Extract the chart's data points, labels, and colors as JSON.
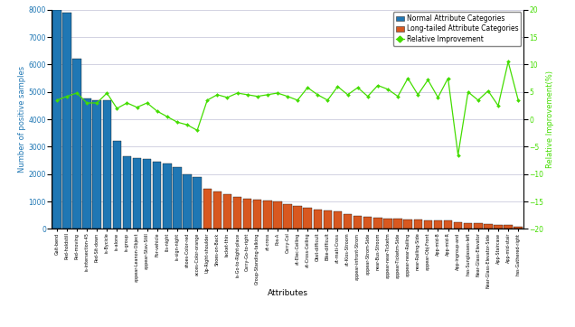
{
  "categories": [
    "Gait-bend",
    "Ped-holdstill",
    "Ped-moving",
    "is-intersection-45",
    "Ped-Sit-down",
    "is-Bycicle",
    "is-alone",
    "is-group",
    "appear-Leanon-Object",
    "appear-Stav-Still",
    "For-vehicle",
    "its-night",
    "is-sign-night",
    "shoes-Color-red",
    "acces-Color-orange",
    "Up-Right-shoulder",
    "Shoes-on-Back",
    "lacket-thin",
    "is-Go-to-Right-place",
    "Carry-Go-to-right",
    "Group-Standing-talking",
    "at-cross",
    "Pos-A",
    "Carry-Col",
    "at-Elec-Ceiling",
    "at-Cross-Ceiling",
    "Obst-difficult",
    "Bike-difficult",
    "at-mati-Cross",
    "at-Kios-Stroom",
    "appear-infront-Strom",
    "appear-Strom-Side",
    "near-Bus-Stroom",
    "appear-near-Ticketm",
    "appear-Ticketm-Side",
    "appear-near-Railing",
    "near-Railing-Side",
    "appear-Obj-Front",
    "App-mid-B",
    "App-mid-R",
    "App-ingroup-and",
    "has-Sunglasses-left",
    "Near-Glass-Elevator",
    "Near-Glass-Elevator-Side",
    "App-Staircase",
    "App-mid-stair",
    "has-Gathered-right"
  ],
  "bar_values": [
    8000,
    7900,
    6200,
    4750,
    4700,
    4700,
    3200,
    2650,
    2600,
    2550,
    2450,
    2400,
    2250,
    2000,
    1900,
    1450,
    1380,
    1280,
    1180,
    1100,
    1060,
    1040,
    1000,
    900,
    840,
    760,
    700,
    680,
    640,
    540,
    480,
    440,
    420,
    370,
    360,
    350,
    335,
    325,
    315,
    295,
    255,
    220,
    205,
    190,
    155,
    140,
    75
  ],
  "bar_colors": [
    "#1f77b4",
    "#1f77b4",
    "#1f77b4",
    "#1f77b4",
    "#1f77b4",
    "#1f77b4",
    "#1f77b4",
    "#1f77b4",
    "#1f77b4",
    "#1f77b4",
    "#1f77b4",
    "#1f77b4",
    "#1f77b4",
    "#1f77b4",
    "#1f77b4",
    "#d85820",
    "#d85820",
    "#d85820",
    "#d85820",
    "#d85820",
    "#d85820",
    "#d85820",
    "#d85820",
    "#d85820",
    "#d85820",
    "#d85820",
    "#d85820",
    "#d85820",
    "#d85820",
    "#d85820",
    "#d85820",
    "#d85820",
    "#d85820",
    "#d85820",
    "#d85820",
    "#d85820",
    "#d85820",
    "#d85820",
    "#d85820",
    "#d85820",
    "#d85820",
    "#d85820",
    "#d85820",
    "#d85820",
    "#d85820",
    "#d85820",
    "#d85820"
  ],
  "line_values": [
    3.5,
    4.2,
    4.8,
    3.0,
    3.0,
    4.8,
    2.0,
    3.0,
    2.2,
    3.0,
    1.5,
    0.5,
    -0.5,
    -1.0,
    -2.0,
    3.5,
    4.5,
    4.0,
    4.8,
    4.5,
    4.2,
    4.5,
    4.8,
    4.2,
    3.5,
    5.8,
    4.5,
    3.5,
    6.0,
    4.5,
    5.8,
    4.2,
    6.2,
    5.5,
    4.2,
    7.5,
    4.5,
    7.2,
    4.0,
    7.5,
    -6.5,
    5.0,
    3.5,
    5.2,
    2.5,
    10.5,
    3.5
  ],
  "ylabel_left": "Number of positive samples",
  "ylabel_right": "Relative Improvement(%)",
  "xlabel": "Attributes",
  "ylim_left": [
    0,
    8000
  ],
  "ylim_right": [
    -20,
    20
  ],
  "yticks_left": [
    0,
    1000,
    2000,
    3000,
    4000,
    5000,
    6000,
    7000,
    8000
  ],
  "yticks_right": [
    -20,
    -15,
    -10,
    -5,
    0,
    5,
    10,
    15,
    20
  ],
  "legend_labels": [
    "Normal Attribute Categories",
    "Long-tailed Attribute Categories",
    "Relative Improvement"
  ],
  "bar_edge_color": "#000000",
  "line_color": "#44dd00",
  "line_marker": "D",
  "bar_blue": "#1f77b4",
  "bar_orange": "#d85820",
  "background_color": "#ffffff",
  "grid_color": "#b0b0cc"
}
